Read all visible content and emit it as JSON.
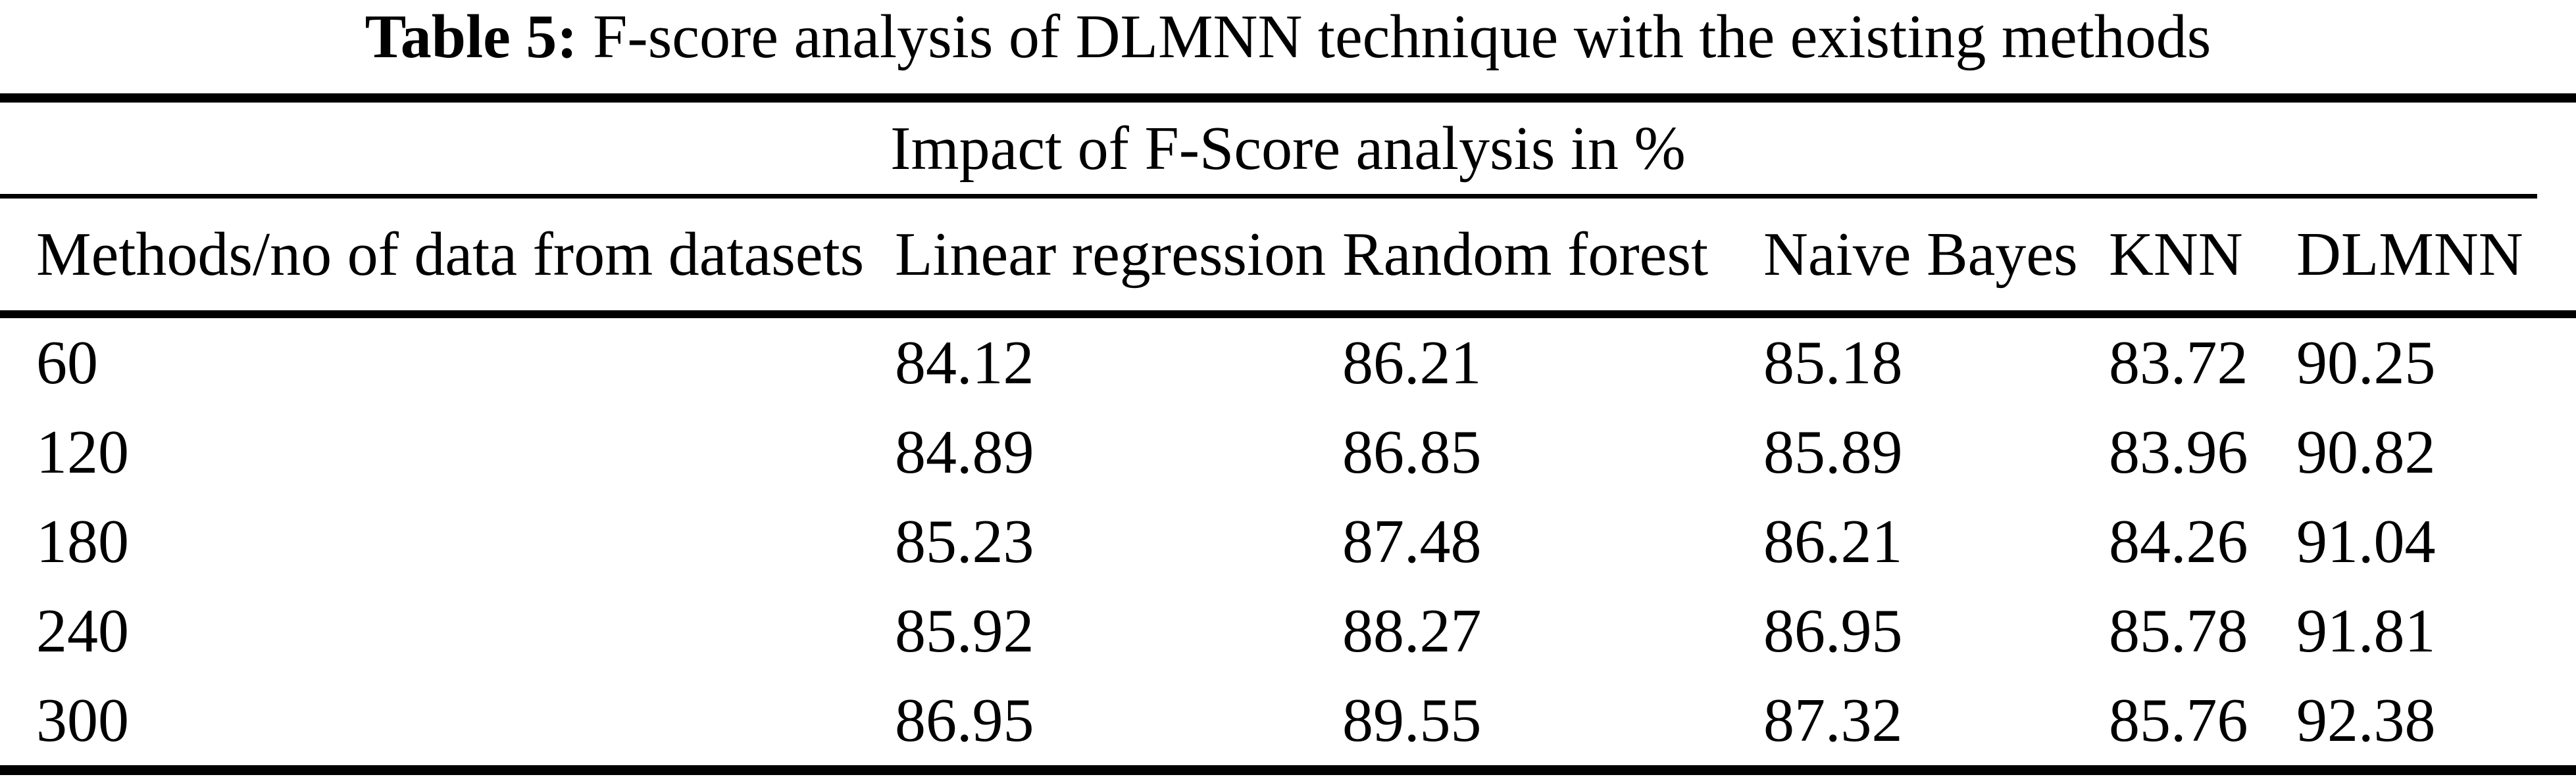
{
  "colors": {
    "text": "#000000",
    "background": "#ffffff"
  },
  "caption": {
    "label": "Table 5:",
    "text": "F-score analysis of DLMNN technique with the existing methods"
  },
  "table": {
    "spanner": "Impact of F-Score analysis in %",
    "columns": [
      "Methods/no of data from datasets",
      "Linear regression",
      "Random forest",
      "Naive Bayes",
      "KNN",
      "DLMNN"
    ],
    "rows": [
      [
        "60",
        "84.12",
        "86.21",
        "85.18",
        "83.72",
        "90.25"
      ],
      [
        "120",
        "84.89",
        "86.85",
        "85.89",
        "83.96",
        "90.82"
      ],
      [
        "180",
        "85.23",
        "87.48",
        "86.21",
        "84.26",
        "91.04"
      ],
      [
        "240",
        "85.92",
        "88.27",
        "86.95",
        "85.78",
        "91.81"
      ],
      [
        "300",
        "86.95",
        "89.55",
        "87.32",
        "85.76",
        "92.38"
      ]
    ]
  }
}
